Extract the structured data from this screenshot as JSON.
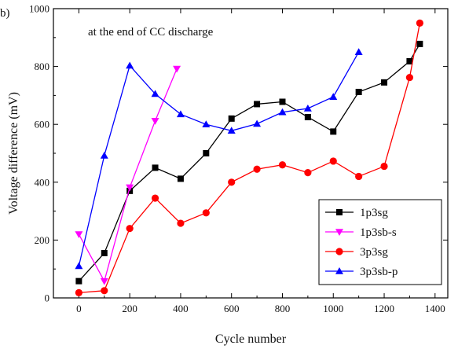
{
  "panel_label": "b)",
  "chart_data": {
    "type": "line",
    "annotation": "at the end of CC discharge",
    "xlabel": "Cycle number",
    "ylabel": "Voltage difference (mV)",
    "xlim": [
      -100,
      1450
    ],
    "ylim": [
      0,
      1000
    ],
    "xticks": [
      0,
      200,
      400,
      600,
      800,
      1000,
      1200,
      1400
    ],
    "yticks": [
      0,
      200,
      400,
      600,
      800,
      1000
    ],
    "grid": false,
    "legend_position": "bottom-right",
    "series": [
      {
        "name": "1p3sg",
        "color": "#000000",
        "marker": "square",
        "x": [
          0,
          100,
          200,
          300,
          400,
          500,
          600,
          700,
          800,
          900,
          1000,
          1100,
          1200,
          1300,
          1340
        ],
        "y": [
          58,
          155,
          370,
          450,
          412,
          500,
          620,
          670,
          678,
          625,
          575,
          712,
          745,
          818,
          878
        ]
      },
      {
        "name": "1p3sb-s",
        "color": "#ff00ff",
        "marker": "triangle-down",
        "x": [
          0,
          100,
          200,
          300,
          385
        ],
        "y": [
          220,
          58,
          382,
          612,
          792
        ]
      },
      {
        "name": "3p3sg",
        "color": "#ff0000",
        "marker": "circle",
        "x": [
          0,
          100,
          200,
          300,
          400,
          500,
          600,
          700,
          800,
          900,
          1000,
          1100,
          1200,
          1300,
          1340
        ],
        "y": [
          18,
          25,
          240,
          345,
          258,
          294,
          400,
          445,
          460,
          433,
          473,
          420,
          455,
          762,
          950
        ]
      },
      {
        "name": "3p3sb-p",
        "color": "#0000ff",
        "marker": "triangle-up",
        "x": [
          0,
          100,
          200,
          300,
          400,
          500,
          600,
          700,
          800,
          900,
          1000,
          1100
        ],
        "y": [
          110,
          492,
          803,
          705,
          635,
          600,
          578,
          602,
          642,
          655,
          695,
          850
        ]
      }
    ]
  }
}
